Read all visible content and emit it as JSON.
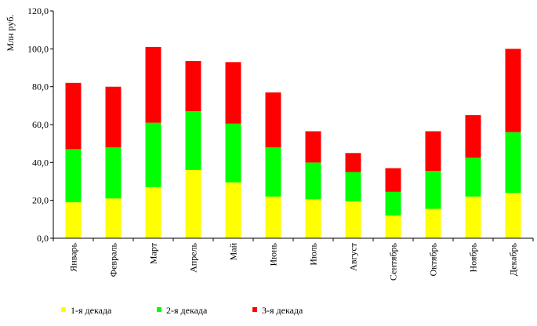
{
  "chart_data": {
    "type": "bar",
    "stacked": true,
    "ylabel": "Млн руб.",
    "ylim": [
      0,
      120
    ],
    "yticks": [
      0,
      20,
      40,
      60,
      80,
      100,
      120
    ],
    "ytick_labels": [
      "0,0",
      "20,0",
      "40,0",
      "60,0",
      "80,0",
      "100,0",
      "120,0"
    ],
    "grid": false,
    "legend_position": "bottom",
    "categories": [
      "Январь",
      "Февраль",
      "Март",
      "Апрель",
      "Май",
      "Июнь",
      "Июль",
      "Август",
      "Сентябрь",
      "Октябрь",
      "Ноябрь",
      "Декабрь"
    ],
    "series": [
      {
        "name": "1-я декада",
        "color": "#ffff00",
        "values": [
          19,
          21,
          27,
          36,
          29.5,
          22,
          20.5,
          19.5,
          12,
          15.5,
          22,
          24
        ]
      },
      {
        "name": "2-я декада",
        "color": "#00ff00",
        "values": [
          28,
          27,
          34,
          31,
          31,
          26,
          19.5,
          15.5,
          12.5,
          20,
          20.5,
          32
        ]
      },
      {
        "name": "3-я декада",
        "color": "#ff0000",
        "values": [
          35,
          32,
          40,
          26.5,
          32.5,
          29,
          16.5,
          10,
          12.5,
          21,
          22.5,
          44
        ]
      }
    ]
  }
}
